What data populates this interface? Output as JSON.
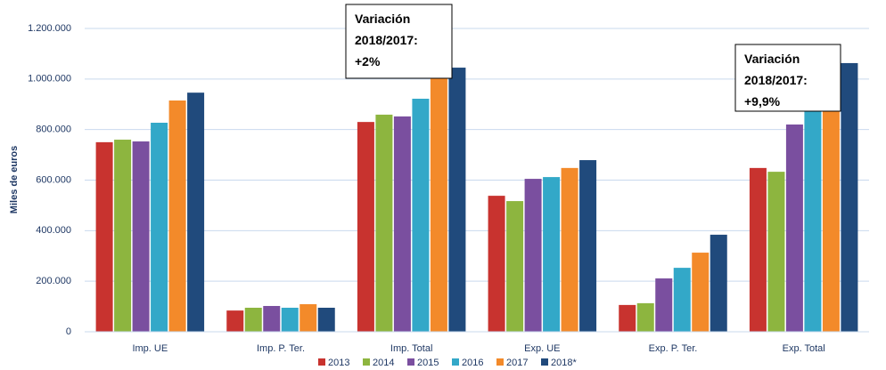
{
  "chart_data": {
    "type": "bar",
    "y_label": "Miles de euros",
    "categories": [
      "Imp. UE",
      "Imp. P. Ter.",
      "Imp. Total",
      "Exp. UE",
      "Exp. P. Ter.",
      "Exp. Total"
    ],
    "series": [
      {
        "name": "2013",
        "color": "#c8332f",
        "values": [
          750000,
          84000,
          830000,
          538000,
          106000,
          648000
        ]
      },
      {
        "name": "2014",
        "color": "#8db53f",
        "values": [
          760000,
          95000,
          859000,
          517000,
          113000,
          633000
        ]
      },
      {
        "name": "2015",
        "color": "#7a4f9f",
        "values": [
          753000,
          102000,
          852000,
          605000,
          211000,
          820000
        ]
      },
      {
        "name": "2016",
        "color": "#33a8c8",
        "values": [
          827000,
          95000,
          922000,
          612000,
          253000,
          873000
        ]
      },
      {
        "name": "2017",
        "color": "#f38a2a",
        "values": [
          915000,
          109000,
          1020000,
          648000,
          313000,
          968000
        ]
      },
      {
        "name": "2018*",
        "color": "#204a7c",
        "values": [
          946000,
          95000,
          1045000,
          679000,
          384000,
          1063000
        ]
      }
    ],
    "ylim": [
      0,
      1200000
    ],
    "yticks": [
      0,
      {
        "value": 200000,
        "label": "200.000"
      },
      {
        "value": 400000,
        "label": "400.000"
      },
      {
        "value": 600000,
        "label": "600.000"
      },
      {
        "value": 800000,
        "label": "800.000"
      },
      {
        "value": 1000000,
        "label": "1.000.000"
      },
      {
        "value": 1200000,
        "label": "1.200.000"
      }
    ],
    "grid": true,
    "legend": "bottom",
    "annotations": [
      {
        "lines": [
          "Variación",
          "2018/2017:",
          "+2%"
        ]
      },
      {
        "lines": [
          "Variación",
          "2018/2017:",
          "+9,9%"
        ]
      }
    ]
  }
}
